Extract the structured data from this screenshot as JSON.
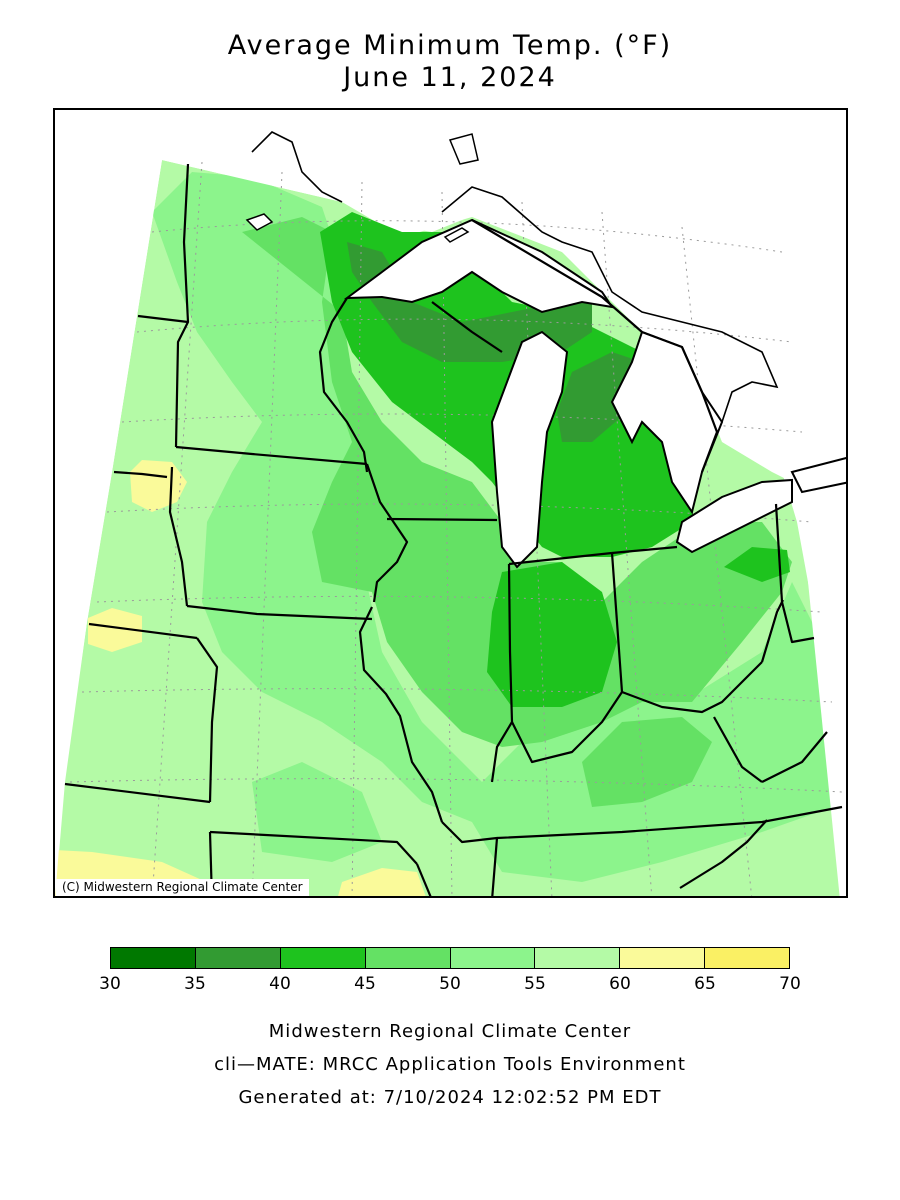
{
  "title": "Average Minimum Temp. (°F)",
  "date": "June 11, 2024",
  "credit": "(C) Midwestern Regional Climate Center",
  "legend": {
    "bins": [
      {
        "from": 30,
        "to": 35,
        "color": "#007800"
      },
      {
        "from": 35,
        "to": 40,
        "color": "#329b32"
      },
      {
        "from": 40,
        "to": 45,
        "color": "#1ec31e"
      },
      {
        "from": 45,
        "to": 50,
        "color": "#64e164"
      },
      {
        "from": 50,
        "to": 55,
        "color": "#8cf48c"
      },
      {
        "from": 55,
        "to": 60,
        "color": "#b4faa6"
      },
      {
        "from": 60,
        "to": 65,
        "color": "#fafa9a"
      },
      {
        "from": 65,
        "to": 70,
        "color": "#faf064"
      }
    ],
    "ticks": [
      "30",
      "35",
      "40",
      "45",
      "50",
      "55",
      "60",
      "65",
      "70"
    ]
  },
  "footer": {
    "line1": "Midwestern Regional Climate Center",
    "line2": "cli—MATE: MRCC Application Tools Environment",
    "line3": "Generated at: 7/10/2024 12:02:52 PM EDT"
  }
}
